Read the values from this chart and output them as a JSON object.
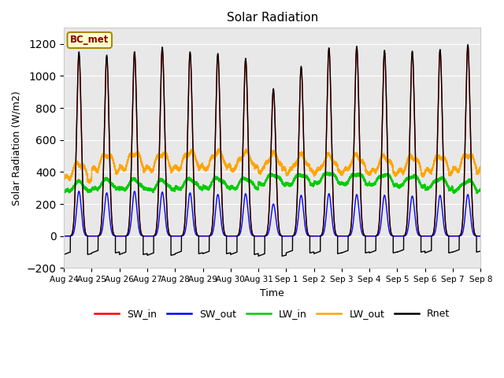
{
  "title": "Solar Radiation",
  "xlabel": "Time",
  "ylabel": "Solar Radiation (W/m2)",
  "ylim": [
    -200,
    1300
  ],
  "yticks": [
    -200,
    0,
    200,
    400,
    600,
    800,
    1000,
    1200
  ],
  "station_label": "BC_met",
  "colors": {
    "SW_in": "#ff0000",
    "SW_out": "#0000ff",
    "LW_in": "#00cc00",
    "LW_out": "#ffa500",
    "Rnet": "#000000"
  },
  "n_days": 15,
  "SW_in_peaks": [
    1130,
    1120,
    1150,
    1170,
    1140,
    1130,
    1100,
    910,
    1050,
    1170,
    1180,
    1150,
    1150,
    1160,
    1190
  ],
  "SW_out_peaks": [
    280,
    270,
    280,
    275,
    270,
    260,
    265,
    200,
    255,
    265,
    260,
    255,
    250,
    255,
    260
  ],
  "LW_in_base": [
    285,
    300,
    300,
    295,
    305,
    310,
    310,
    335,
    335,
    345,
    340,
    335,
    325,
    310,
    295
  ],
  "LW_out_base": [
    375,
    430,
    440,
    435,
    445,
    445,
    440,
    430,
    420,
    420,
    420,
    415,
    415,
    420,
    430
  ],
  "Rnet_peaks": [
    1150,
    1130,
    1150,
    1180,
    1150,
    1140,
    1110,
    920,
    1060,
    1175,
    1185,
    1160,
    1155,
    1165,
    1195
  ],
  "Rnet_night": [
    -100,
    -90,
    -100,
    -105,
    -95,
    -95,
    -100,
    -110,
    -90,
    -95,
    -90,
    -90,
    -85,
    -90,
    -85
  ],
  "day_labels": [
    "Aug 24",
    "Aug 25",
    "Aug 26",
    "Aug 27",
    "Aug 28",
    "Aug 29",
    "Aug 30",
    "Aug 31",
    "Sep 1",
    "Sep 2",
    "Sep 3",
    "Sep 4",
    "Sep 5",
    "Sep 6",
    "Sep 7",
    "Sep 8"
  ],
  "fig_facecolor": "#ffffff",
  "ax_facecolor": "#e8e8e8"
}
